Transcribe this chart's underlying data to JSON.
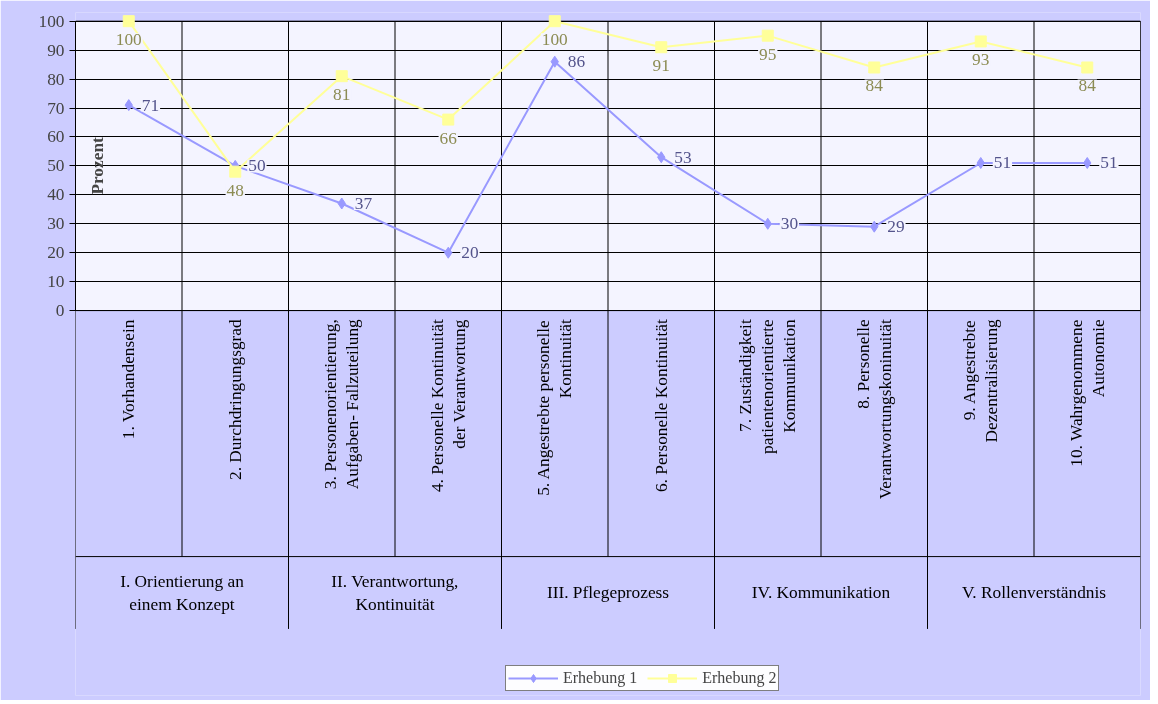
{
  "chart_data": {
    "type": "line",
    "ylabel": "Prozent",
    "categories": [
      "1. Vorhandensein",
      "2. Durchdringungsgrad",
      "3. Personenorientierung, Aufgaben- Fallzuteilung",
      "4. Personelle Kontinuität der Verantwortung",
      "5. Angestrebte personelle Kontinuität",
      "6. Personelle Kontinuität",
      "7. Zuständigkeit patientenorientierte Kommunikation",
      "8. Personelle Verantwortungskoninuität",
      "9. Angestrebte Dezentralisierung",
      "10. Wahrgenommene Autonomie"
    ],
    "series": [
      {
        "name": "Erhebung 1",
        "color": "#9999ff",
        "marker": "diamond",
        "values": [
          71,
          50,
          37,
          20,
          86,
          53,
          30,
          29,
          51,
          51
        ]
      },
      {
        "name": "Erhebung 2",
        "color": "#ffff99",
        "marker": "square",
        "values": [
          100,
          48,
          81,
          66,
          100,
          91,
          95,
          84,
          93,
          84
        ]
      }
    ],
    "annotations": [
      "I. Orientierung an einem Konzept",
      "II. Verantwortung, Kontinuität",
      "III. Pflegeprozess",
      "IV. Kommunikation",
      "V. Rollenverständnis"
    ],
    "ylim": [
      0,
      100
    ],
    "yticks": [
      0,
      10,
      20,
      30,
      40,
      50,
      60,
      70,
      80,
      90,
      100
    ],
    "grid": "y",
    "legend": "bottom",
    "data_labels": true,
    "line_style": "solid"
  }
}
